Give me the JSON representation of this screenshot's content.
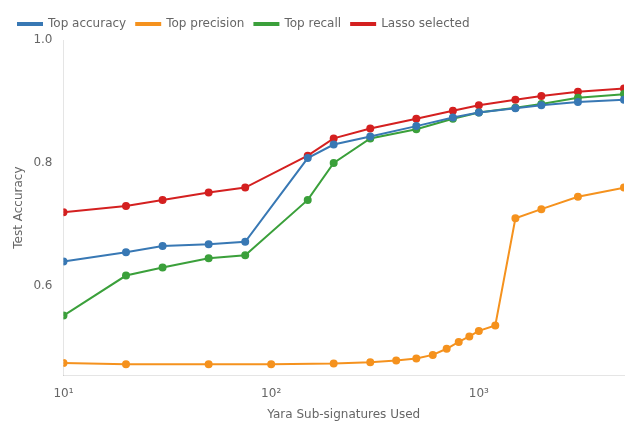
{
  "chart_data": {
    "type": "line",
    "xlabel": "Yara Sub-signatures Used",
    "ylabel": "Test Accuracy",
    "log": "x",
    "xlim": [
      10,
      5000
    ],
    "ylim": [
      0.455,
      1.0
    ],
    "xticks": [
      {
        "value": 10,
        "label": "10¹"
      },
      {
        "value": 100,
        "label": "10²"
      },
      {
        "value": 1000,
        "label": "10³"
      }
    ],
    "yticks": [
      0.6,
      0.8,
      {
        "value": 1.0,
        "label": "1.0"
      }
    ],
    "grid": false,
    "legend": "upper left",
    "marker": "circle",
    "series": [
      {
        "name": "Top accuracy",
        "color": "#3878B4",
        "x": [
          10,
          20,
          30,
          50,
          75,
          150,
          200,
          300,
          500,
          750,
          1000,
          1500,
          2000,
          3000,
          5000
        ],
        "values": [
          0.64,
          0.655,
          0.665,
          0.668,
          0.672,
          0.808,
          0.83,
          0.843,
          0.86,
          0.874,
          0.882,
          0.889,
          0.894,
          0.899,
          0.903
        ]
      },
      {
        "name": "Top precision",
        "color": "#F5921E",
        "x": [
          10,
          20,
          50,
          100,
          200,
          300,
          400,
          500,
          600,
          700,
          800,
          900,
          1000,
          1200,
          1500,
          2000,
          3000,
          5000
        ],
        "values": [
          0.475,
          0.473,
          0.473,
          0.473,
          0.474,
          0.476,
          0.479,
          0.482,
          0.488,
          0.498,
          0.509,
          0.518,
          0.527,
          0.536,
          0.71,
          0.725,
          0.745,
          0.76
        ]
      },
      {
        "name": "Top recall",
        "color": "#3BA03B",
        "x": [
          10,
          20,
          30,
          50,
          75,
          150,
          200,
          300,
          500,
          750,
          1000,
          1500,
          2000,
          3000,
          5000
        ],
        "values": [
          0.552,
          0.617,
          0.63,
          0.645,
          0.65,
          0.74,
          0.8,
          0.84,
          0.855,
          0.872,
          0.882,
          0.89,
          0.896,
          0.906,
          0.912
        ]
      },
      {
        "name": "Lasso selected",
        "color": "#D42020",
        "x": [
          10,
          20,
          30,
          50,
          75,
          150,
          200,
          300,
          500,
          750,
          1000,
          1500,
          2000,
          3000,
          5000
        ],
        "values": [
          0.72,
          0.73,
          0.74,
          0.752,
          0.76,
          0.812,
          0.84,
          0.856,
          0.872,
          0.885,
          0.894,
          0.903,
          0.909,
          0.916,
          0.921
        ]
      }
    ]
  }
}
